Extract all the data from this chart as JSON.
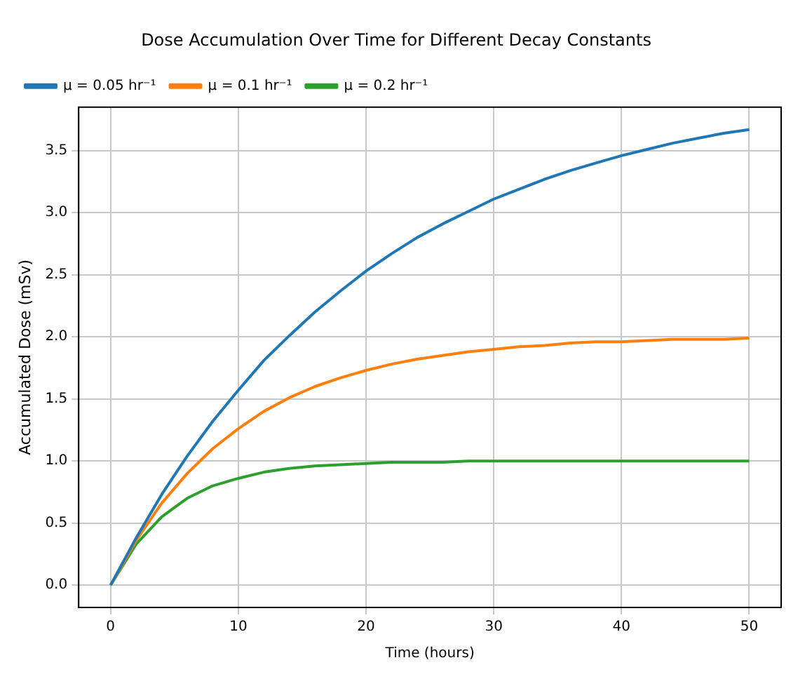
{
  "chart_data": {
    "type": "line",
    "title": "Dose Accumulation Over Time for Different Decay Constants",
    "xlabel": "Time (hours)",
    "ylabel": "Accumulated Dose (mSv)",
    "x": [
      0,
      2,
      4,
      6,
      8,
      10,
      12,
      14,
      16,
      18,
      20,
      22,
      24,
      26,
      28,
      30,
      32,
      34,
      36,
      38,
      40,
      42,
      44,
      46,
      48,
      50
    ],
    "series": [
      {
        "name": "μ = 0.05 hr⁻¹",
        "color": "#1f77b4",
        "values": [
          0,
          0.38,
          0.73,
          1.04,
          1.32,
          1.57,
          1.81,
          2.01,
          2.2,
          2.37,
          2.53,
          2.67,
          2.8,
          2.91,
          3.01,
          3.11,
          3.19,
          3.27,
          3.34,
          3.4,
          3.46,
          3.51,
          3.56,
          3.6,
          3.64,
          3.67
        ]
      },
      {
        "name": "μ = 0.1 hr⁻¹",
        "color": "#ff7f0e",
        "values": [
          0,
          0.36,
          0.66,
          0.9,
          1.1,
          1.26,
          1.4,
          1.51,
          1.6,
          1.67,
          1.73,
          1.78,
          1.82,
          1.85,
          1.88,
          1.9,
          1.92,
          1.93,
          1.95,
          1.96,
          1.96,
          1.97,
          1.98,
          1.98,
          1.98,
          1.99
        ]
      },
      {
        "name": "μ = 0.2 hr⁻¹",
        "color": "#2ca02c",
        "values": [
          0,
          0.33,
          0.55,
          0.7,
          0.8,
          0.86,
          0.91,
          0.94,
          0.96,
          0.97,
          0.98,
          0.99,
          0.99,
          0.99,
          1,
          1,
          1,
          1,
          1,
          1,
          1,
          1,
          1,
          1,
          1,
          1
        ]
      }
    ],
    "xlim": [
      -2.5,
      52.5
    ],
    "xticks": [
      0,
      10,
      20,
      30,
      40,
      50
    ],
    "ylim": [
      -0.18,
      3.85
    ],
    "yticks": [
      {
        "value": 0,
        "label": "0.0"
      },
      {
        "value": 0.5,
        "label": "0.5"
      },
      {
        "value": 1,
        "label": "1.0"
      },
      {
        "value": 1.5,
        "label": "1.5"
      },
      {
        "value": 2,
        "label": "2.0"
      },
      {
        "value": 2.5,
        "label": "2.5"
      },
      {
        "value": 3,
        "label": "3.0"
      },
      {
        "value": 3.5,
        "label": "3.5"
      }
    ],
    "grid": true,
    "legend": "top left",
    "marker": "none",
    "line_style": "solid"
  }
}
